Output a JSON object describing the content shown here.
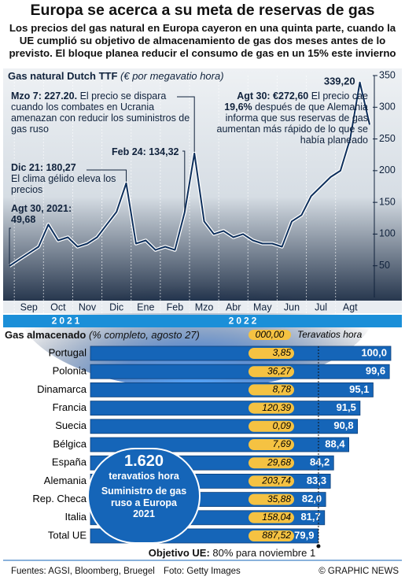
{
  "header": {
    "title": "Europa se acerca a su meta de reservas de gas",
    "subtitle": "Los precios del gas natural en Europa cayeron en una quinta parte, cuando la UE cumplió su objetivo de almacenamiento de gas dos meses antes de lo previsto. El bloque planea reducir el consumo de gas en un 15% este invierno"
  },
  "chart_data": [
    {
      "type": "line",
      "title": "Gas natural Dutch TTF",
      "subtitle": "(€ por megavatio hora)",
      "categories": [
        null,
        null,
        "Sep",
        null,
        null,
        "Oct",
        null,
        null,
        "Nov",
        null,
        null,
        "Dic",
        null,
        null,
        "Ene",
        null,
        null,
        "Feb",
        null,
        null,
        "Mzo",
        null,
        null,
        "Abr",
        null,
        null,
        "May",
        null,
        null,
        "Jun",
        null,
        null,
        "Jul",
        null,
        null,
        "Agt",
        null,
        null
      ],
      "year_labels": [
        "2021",
        "2022"
      ],
      "series": [
        {
          "name": "Dutch TTF",
          "color": "#0d2f5c",
          "values": [
            49.68,
            60,
            70,
            80,
            115,
            90,
            95,
            80,
            85,
            95,
            115,
            135,
            180.27,
            85,
            90,
            75,
            80,
            75,
            134.32,
            227.2,
            120,
            100,
            105,
            95,
            100,
            90,
            85,
            85,
            80,
            120,
            130,
            160,
            175,
            190,
            200,
            250,
            339.2,
            272.6
          ]
        }
      ],
      "ylim": [
        0,
        350
      ],
      "yticks": [
        50,
        100,
        150,
        200,
        250,
        300,
        350
      ],
      "annotations": [
        {
          "title": "Agt 30, 2021:",
          "text": "49,68"
        },
        {
          "title": "Dic 21: 180,27",
          "text": "El clima gélido eleva los precios"
        },
        {
          "title": "Feb 24: 134,32",
          "text": ""
        },
        {
          "title": "Mzo 7: 227.20.",
          "text": "El precio se dispara cuando los combates en Ucrania amenazan con reducir los suministros de gas ruso"
        },
        {
          "title": "Agt 30: €272,60",
          "text": "El precio cae",
          "highlight": "19,6%",
          "text2": "después de que Alemania informa que sus reservas de gas aumentan más rápido de lo que se había planeado"
        }
      ],
      "peak_label": "339,20"
    },
    {
      "type": "hbar",
      "title": "Gas almacenado",
      "subtitle": "(% completo, agosto 27)",
      "legend": {
        "sample": "000,00",
        "label": "Teravatios hora"
      },
      "categories": [
        "Portugal",
        "Polonia",
        "Dinamarca",
        "Francia",
        "Suecia",
        "Bélgica",
        "España",
        "Alemania",
        "Rep. Checa",
        "Italia",
        "Total UE"
      ],
      "values": [
        100.0,
        99.6,
        95.1,
        91.5,
        90.8,
        88.4,
        84.2,
        83.3,
        82.0,
        81.7,
        79.9
      ],
      "value_labels": [
        "100,0",
        "99,6",
        "95,1",
        "91,5",
        "90,8",
        "88,4",
        "84,2",
        "83,3",
        "82,0",
        "81,7",
        "79,9"
      ],
      "twh_values": [
        3.85,
        36.27,
        8.78,
        120.39,
        0.09,
        7.69,
        29.68,
        203.74,
        35.88,
        158.04,
        887.52
      ],
      "twh_labels": [
        "3,85",
        "36,27",
        "8,78",
        "120,39",
        "0,09",
        "7,69",
        "29,68",
        "203,74",
        "35,88",
        "158,04",
        "887,52"
      ],
      "color": "#1565b8",
      "twh_color": "#f5c242",
      "xlim": [
        17,
        100
      ],
      "target": {
        "value": 80,
        "title": "Objetivo UE:",
        "text": "80% para noviembre 1"
      },
      "callout": {
        "value": "1.620",
        "unit": "teravatios hora",
        "text": "Suministro de gas ruso a Europa 2021"
      }
    }
  ],
  "footer": {
    "sources": "Fuentes: AGSI, Bloomberg, Bruegel",
    "photo": "Foto: Getty Images",
    "credit": "© GRAPHIC NEWS"
  }
}
